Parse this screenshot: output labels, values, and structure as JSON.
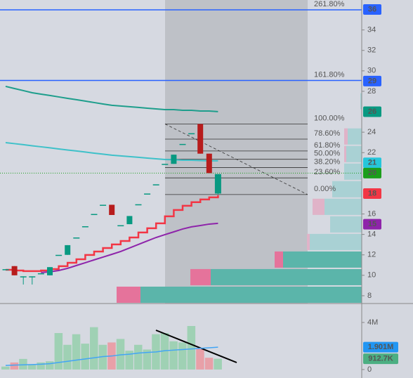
{
  "chart_data": {
    "type": "candlestick",
    "ylim": [
      7.24,
      36.93
    ],
    "yticks": [
      8,
      10,
      12,
      14,
      16,
      22,
      24,
      28,
      30,
      32,
      34
    ],
    "candles": {
      "open": [
        10.6,
        10.9,
        9.9,
        9.9,
        10.2,
        10.0,
        12.0,
        12.0,
        13.7,
        14.8,
        16.0,
        16.9,
        16.9,
        14.9,
        15.0,
        16.95,
        18.0,
        18.9,
        20.9,
        20.9,
        22.85,
        23.9,
        24.8,
        21.9,
        18.0
      ],
      "high": [
        10.6,
        10.9,
        9.9,
        9.9,
        10.2,
        10.8,
        12.0,
        12.95,
        13.7,
        14.8,
        16.0,
        16.9,
        16.9,
        14.9,
        15.8,
        16.95,
        18.0,
        18.9,
        20.9,
        21.8,
        22.85,
        23.9,
        24.8,
        21.9,
        19.9
      ],
      "low": [
        10.6,
        10.0,
        9.1,
        9.1,
        10.2,
        10.0,
        12.0,
        12.0,
        13.7,
        14.8,
        16.0,
        16.9,
        15.9,
        14.9,
        15.0,
        16.95,
        18.0,
        18.9,
        20.9,
        20.9,
        22.85,
        23.9,
        21.9,
        20.0,
        17.9
      ],
      "close": [
        10.6,
        10.0,
        9.9,
        9.9,
        10.2,
        10.8,
        12.0,
        12.95,
        13.7,
        14.8,
        16.0,
        16.9,
        15.9,
        14.9,
        15.8,
        16.95,
        18.0,
        18.9,
        20.9,
        21.8,
        22.85,
        23.9,
        21.9,
        20.0,
        19.9
      ],
      "up_color": "#089981",
      "down_color": "#b71c1c",
      "doji_color": "#089981"
    },
    "series": [
      {
        "color": "#1e9e8c",
        "step": false,
        "values": [
          28.48,
          28.27,
          28.07,
          27.86,
          27.72,
          27.59,
          27.45,
          27.31,
          27.18,
          27.04,
          26.9,
          26.76,
          26.63,
          26.56,
          26.49,
          26.42,
          26.35,
          26.28,
          26.21,
          26.21,
          26.14,
          26.14,
          26.07,
          26.07,
          26.01
        ]
      },
      {
        "color": "#3fc1c9",
        "step": false,
        "values": [
          22.98,
          22.88,
          22.78,
          22.67,
          22.57,
          22.47,
          22.36,
          22.26,
          22.16,
          22.06,
          21.95,
          21.85,
          21.75,
          21.68,
          21.61,
          21.54,
          21.47,
          21.4,
          21.33,
          21.3,
          21.26,
          21.26,
          21.23,
          21.2,
          21.2
        ]
      },
      {
        "color": "#f23645",
        "step": true,
        "values": [
          10.54,
          10.47,
          10.41,
          10.41,
          10.47,
          10.61,
          10.89,
          11.23,
          11.57,
          11.99,
          12.33,
          12.67,
          13.02,
          13.36,
          13.7,
          14.19,
          14.6,
          15.08,
          15.77,
          16.39,
          16.8,
          17.15,
          17.42,
          17.63,
          17.83
        ]
      },
      {
        "color": "#8e24aa",
        "step": false,
        "values": [
          null,
          null,
          null,
          null,
          10.27,
          10.34,
          10.47,
          10.68,
          10.96,
          11.23,
          11.51,
          11.78,
          12.05,
          12.33,
          12.67,
          13.02,
          13.36,
          13.7,
          13.98,
          14.25,
          14.53,
          14.74,
          14.87,
          15.01,
          15.08
        ]
      }
    ],
    "fib": {
      "low": 17.9,
      "high": 24.8,
      "levels": [
        {
          "value": 0,
          "label": "0.00%"
        },
        {
          "value": 23.6,
          "label": "23.60%"
        },
        {
          "value": 38.2,
          "label": "38.20%"
        },
        {
          "value": 50,
          "label": "50.00%"
        },
        {
          "value": 61.8,
          "label": "61.80%"
        },
        {
          "value": 78.6,
          "label": "78.60%"
        },
        {
          "value": 100,
          "label": "100.00%"
        },
        {
          "value": 161.8,
          "label": "161.80%"
        },
        {
          "value": 261.8,
          "label": "261.80%"
        }
      ]
    },
    "price_labels": [
      {
        "value": 36,
        "label": "36",
        "color": "#2962ff"
      },
      {
        "value": 29,
        "label": "29",
        "color": "#2962ff"
      },
      {
        "value": 26,
        "label": "26",
        "color": "#089981"
      },
      {
        "value": 21,
        "label": "21",
        "color": "#26c6da"
      },
      {
        "value": 20,
        "label": "20",
        "color": "#1b9e1b"
      },
      {
        "value": 18,
        "label": "18",
        "color": "#f23645"
      },
      {
        "value": 15,
        "label": "15",
        "color": "#8e24aa"
      }
    ],
    "profile": {
      "step": 1.72,
      "value_area_rows": 3,
      "rows": [
        [
          315,
          34
        ],
        [
          215,
          29
        ],
        [
          112,
          12
        ],
        [
          74,
          4
        ],
        [
          45,
          0
        ],
        [
          53,
          17
        ],
        [
          42,
          0
        ],
        [
          25,
          0
        ],
        [
          22,
          3
        ],
        [
          20,
          5
        ],
        [
          0,
          0
        ],
        [
          2,
          0
        ]
      ],
      "colors": [
        "#5bb5aa",
        "#e5739b",
        "#a9d1d4",
        "#e0b3c8"
      ]
    },
    "volume": {
      "ylim": [
        -0.72,
        5.61
      ],
      "yticks": [
        0,
        {
          "value": 4,
          "label": "4M"
        }
      ],
      "values": [
        0.25,
        0.6,
        0.9,
        0.45,
        0.6,
        0.7,
        3.1,
        2.1,
        3.0,
        2.2,
        3.6,
        2.1,
        2.3,
        2.6,
        1.6,
        2.1,
        1.7,
        3.0,
        3.1,
        2.4,
        2.3,
        3.7,
        1.8,
        1.0,
        0.9127
      ],
      "ma": [
        0.35,
        0.38,
        0.4,
        0.42,
        0.45,
        0.5,
        0.6,
        0.7,
        0.8,
        0.9,
        1.0,
        1.1,
        1.15,
        1.25,
        1.3,
        1.4,
        1.45,
        1.5,
        1.6,
        1.65,
        1.7,
        1.75,
        1.8,
        1.85,
        1.901
      ],
      "ma_color": "#42a5f5",
      "up_color": "#9fd1b4",
      "down_color": "#e8a0a8",
      "labels": [
        {
          "value": 1.901,
          "label": "1.901M",
          "color": "#2196f3"
        },
        {
          "value": 0.9127,
          "label": "912.7K",
          "color": "#4caf82"
        }
      ]
    }
  }
}
